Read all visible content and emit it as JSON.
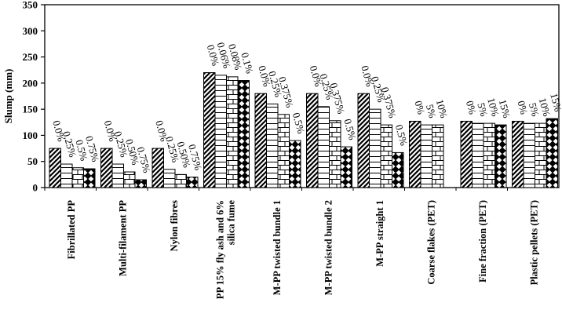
{
  "chart_data": {
    "type": "bar",
    "ylabel": "Slump (mm)",
    "ylim": [
      0,
      350
    ],
    "yticks": [
      0,
      50,
      100,
      150,
      200,
      250,
      300,
      350
    ],
    "grid": false,
    "legend": "none",
    "categories": [
      "Fibrillated PP",
      "Multi-filament PP",
      "Nylon fibres",
      "PP 15% fly ash and 6% silica fume",
      "M-PP twisted bundle 1",
      "M-PP twisted bundle 2",
      "M-PP straight 1",
      "Coarse flakes (PET)",
      "Fine fraction (PET)",
      "Plastic pellets (PET)"
    ],
    "groups": [
      {
        "category": "Fibrillated PP",
        "bars": [
          {
            "label": "0.0%",
            "value": 75,
            "pattern": "diag"
          },
          {
            "label": "0.25%",
            "value": 45,
            "pattern": "hlines"
          },
          {
            "label": "0.5%",
            "value": 38,
            "pattern": "brick"
          },
          {
            "label": "0.75%",
            "value": 36,
            "pattern": "diamond"
          }
        ]
      },
      {
        "category": "Multi-filament PP",
        "bars": [
          {
            "label": "0.0%",
            "value": 75,
            "pattern": "diag"
          },
          {
            "label": "0.25%",
            "value": 45,
            "pattern": "hlines"
          },
          {
            "label": "0.50%",
            "value": 30,
            "pattern": "brick"
          },
          {
            "label": "0.75%",
            "value": 15,
            "pattern": "diamond"
          }
        ]
      },
      {
        "category": "Nylon fibres",
        "bars": [
          {
            "label": "0.0%",
            "value": 75,
            "pattern": "diag"
          },
          {
            "label": "0.25%",
            "value": 35,
            "pattern": "hlines"
          },
          {
            "label": "0.50%",
            "value": 25,
            "pattern": "brick"
          },
          {
            "label": "0.75%",
            "value": 20,
            "pattern": "diamond"
          }
        ]
      },
      {
        "category": "PP 15% fly ash and 6% silica fume",
        "bars": [
          {
            "label": "0.0%",
            "value": 220,
            "pattern": "diag"
          },
          {
            "label": "0.06%",
            "value": 215,
            "pattern": "hlines"
          },
          {
            "label": "0.08%",
            "value": 212,
            "pattern": "brick"
          },
          {
            "label": "0.1%",
            "value": 205,
            "pattern": "diamond"
          }
        ]
      },
      {
        "category": "M-PP twisted bundle 1",
        "bars": [
          {
            "label": "0.0%",
            "value": 180,
            "pattern": "diag"
          },
          {
            "label": "0.25%",
            "value": 160,
            "pattern": "hlines"
          },
          {
            "label": "0.375%",
            "value": 140,
            "pattern": "brick"
          },
          {
            "label": "0.5%",
            "value": 90,
            "pattern": "diamond"
          }
        ]
      },
      {
        "category": "M-PP twisted bundle 2",
        "bars": [
          {
            "label": "0.0%",
            "value": 180,
            "pattern": "diag"
          },
          {
            "label": "0.25%",
            "value": 155,
            "pattern": "hlines"
          },
          {
            "label": "0.375%",
            "value": 128,
            "pattern": "brick"
          },
          {
            "label": "0.5%",
            "value": 78,
            "pattern": "diamond"
          }
        ]
      },
      {
        "category": "M-PP straight 1",
        "bars": [
          {
            "label": "0.0%",
            "value": 180,
            "pattern": "diag"
          },
          {
            "label": "0.25%",
            "value": 150,
            "pattern": "hlines"
          },
          {
            "label": "0.375%",
            "value": 120,
            "pattern": "brick"
          },
          {
            "label": "0.5%",
            "value": 67,
            "pattern": "diamond"
          }
        ]
      },
      {
        "category": "Coarse flakes (PET)",
        "bars": [
          {
            "label": "0%",
            "value": 127,
            "pattern": "diag"
          },
          {
            "label": "5%",
            "value": 120,
            "pattern": "hlines"
          },
          {
            "label": "10%",
            "value": 120,
            "pattern": "brick"
          }
        ]
      },
      {
        "category": "Fine fraction (PET)",
        "bars": [
          {
            "label": "0%",
            "value": 127,
            "pattern": "diag"
          },
          {
            "label": "5%",
            "value": 123,
            "pattern": "hlines"
          },
          {
            "label": "10%",
            "value": 123,
            "pattern": "brick"
          },
          {
            "label": "15%",
            "value": 120,
            "pattern": "diamond"
          }
        ]
      },
      {
        "category": "Plastic pellets (PET)",
        "bars": [
          {
            "label": "0%",
            "value": 127,
            "pattern": "diag"
          },
          {
            "label": "5%",
            "value": 123,
            "pattern": "hlines"
          },
          {
            "label": "10%",
            "value": 123,
            "pattern": "brick"
          },
          {
            "label": "15%",
            "value": 132,
            "pattern": "diamond"
          }
        ]
      }
    ]
  }
}
